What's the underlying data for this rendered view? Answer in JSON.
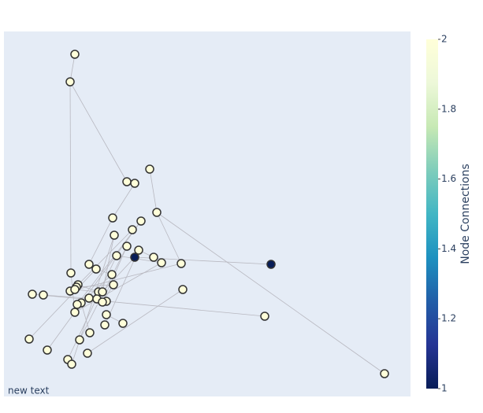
{
  "chart_data": {
    "type": "network",
    "annotation": "new text",
    "colorbar_title": "Node Connections",
    "xlim": [
      0,
      516
    ],
    "ylim": [
      0,
      464
    ],
    "x": [
      90,
      84,
      156,
      166,
      185,
      194,
      138,
      174,
      163,
      140,
      156,
      171,
      143,
      166,
      339,
      190,
      200,
      225,
      108,
      117,
      85,
      137,
      94,
      92,
      139,
      84,
      90,
      36,
      50,
      227,
      120,
      125,
      108,
      118,
      98,
      130,
      125,
      93,
      90,
      130,
      331,
      151,
      128,
      109,
      32,
      96,
      55,
      106,
      81,
      86,
      483
    ],
    "y": [
      435,
      400,
      273,
      271,
      289,
      234,
      227,
      223,
      212,
      205,
      191,
      186,
      179,
      177,
      168,
      177,
      170,
      169,
      168,
      162,
      157,
      155,
      142,
      139,
      142,
      134,
      136,
      130,
      129,
      136,
      133,
      133,
      125,
      124,
      119,
      121,
      120,
      117,
      107,
      104,
      102,
      93,
      91,
      81,
      73,
      72,
      59,
      55,
      47,
      41,
      29
    ],
    "color_values": [
      2,
      2,
      2,
      2,
      2,
      2,
      2,
      2,
      2,
      2,
      2,
      2,
      2,
      1,
      1,
      2,
      2,
      2,
      2,
      2,
      2,
      2,
      2,
      2,
      2,
      2,
      2,
      2,
      2,
      2,
      2,
      2,
      2,
      2,
      2,
      2,
      2,
      2,
      2,
      2,
      2,
      2,
      2,
      2,
      2,
      2,
      2,
      2,
      2,
      2,
      2
    ],
    "edges": [
      [
        0,
        1
      ],
      [
        1,
        20
      ],
      [
        1,
        2
      ],
      [
        2,
        3
      ],
      [
        4,
        5
      ],
      [
        5,
        50
      ],
      [
        5,
        17
      ],
      [
        3,
        6
      ],
      [
        6,
        18
      ],
      [
        7,
        37
      ],
      [
        8,
        22
      ],
      [
        9,
        31
      ],
      [
        10,
        36
      ],
      [
        11,
        15
      ],
      [
        14,
        13
      ],
      [
        12,
        16
      ],
      [
        19,
        21
      ],
      [
        23,
        24
      ],
      [
        27,
        40
      ],
      [
        28,
        33
      ],
      [
        29,
        47
      ],
      [
        25,
        17
      ],
      [
        26,
        30
      ],
      [
        32,
        35
      ],
      [
        34,
        43
      ],
      [
        38,
        16
      ],
      [
        39,
        41
      ],
      [
        42,
        11
      ],
      [
        44,
        19
      ],
      [
        45,
        10
      ],
      [
        46,
        7
      ],
      [
        48,
        12
      ],
      [
        49,
        9
      ],
      [
        20,
        38
      ],
      [
        22,
        30
      ],
      [
        24,
        36
      ],
      [
        21,
        34
      ],
      [
        31,
        13
      ]
    ],
    "colorscale": [
      [
        0,
        "#081d58"
      ],
      [
        0.125,
        "#253494"
      ],
      [
        0.25,
        "#225ea8"
      ],
      [
        0.375,
        "#1d91c0"
      ],
      [
        0.5,
        "#41b6c4"
      ],
      [
        0.625,
        "#7fcdbb"
      ],
      [
        0.75,
        "#c7e9b4"
      ],
      [
        0.875,
        "#edf8d9"
      ],
      [
        1,
        "#ffffd9"
      ]
    ],
    "clim": [
      1,
      2
    ],
    "cticks": [
      1,
      1.2,
      1.4,
      1.6,
      1.8,
      2
    ],
    "edge_color": "#b8b8c0",
    "background": "#e5ecf6"
  }
}
